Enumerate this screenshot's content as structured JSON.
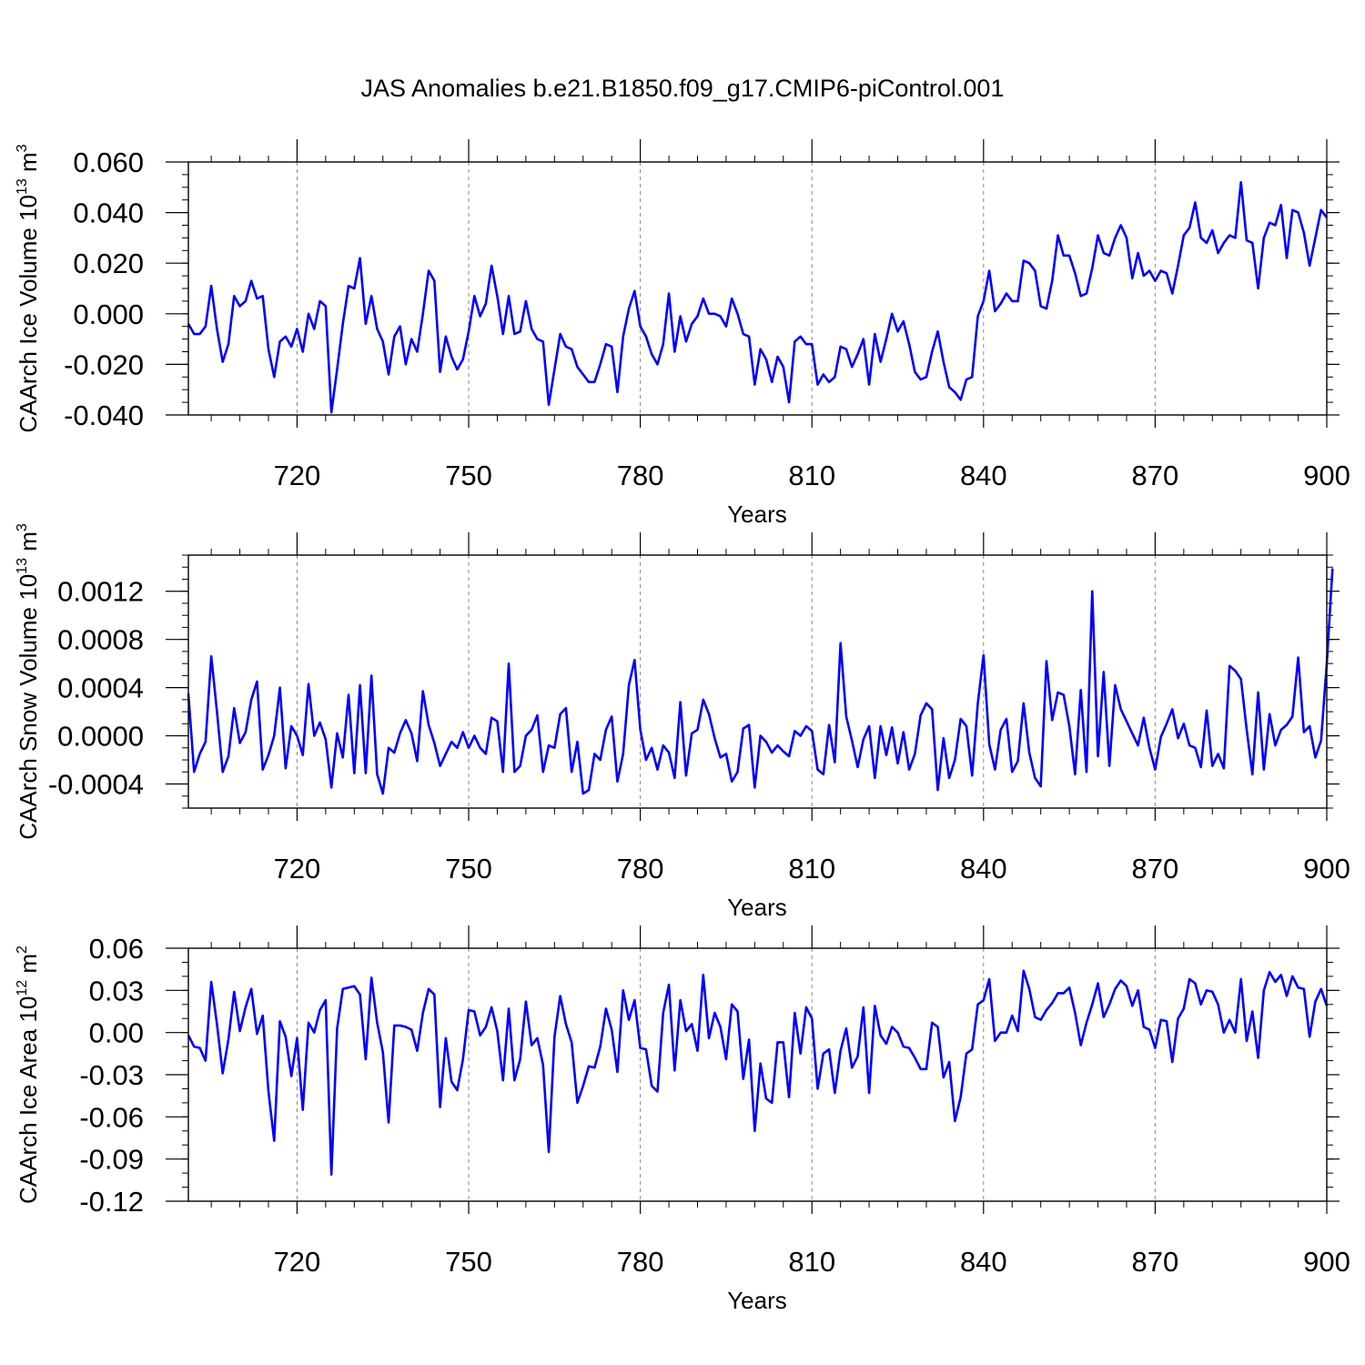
{
  "figure": {
    "title": "JAS Anomalies b.e21.B1850.f09_g17.CMIP6-piControl.001",
    "line_color": "#0000ff",
    "grid_color": "#888888"
  },
  "chart_data": [
    {
      "type": "line",
      "ylabel_main": "CAArch Ice Volume 10",
      "ylabel_exp": "13",
      "ylabel_unit": "m",
      "ylabel_unit_exp": "3",
      "xlabel": "Years",
      "xlim": [
        701,
        900
      ],
      "ylim": [
        -0.04,
        0.06
      ],
      "xticks": [
        720,
        750,
        780,
        810,
        840,
        870,
        900
      ],
      "xtick_labels": [
        "720",
        "750",
        "780",
        "810",
        "840",
        "870",
        "900"
      ],
      "yticks": [
        -0.04,
        -0.02,
        0.0,
        0.02,
        0.04,
        0.06
      ],
      "ytick_labels": [
        "-0.040",
        "-0.020",
        "0.000",
        "0.020",
        "0.040",
        "0.060"
      ],
      "yminor": 0.005,
      "grid_x": [
        720,
        750,
        780,
        810,
        840,
        870
      ],
      "series": [
        {
          "name": "CAArch Ice Volume",
          "x_start": 701,
          "values": [
            -0.004,
            -0.008,
            -0.008,
            -0.005,
            0.011,
            -0.006,
            -0.019,
            -0.012,
            0.007,
            0.003,
            0.005,
            0.013,
            0.006,
            0.007,
            -0.014,
            -0.025,
            -0.011,
            -0.009,
            -0.013,
            -0.006,
            -0.015,
            0.0,
            -0.006,
            0.005,
            0.003,
            -0.039,
            -0.022,
            -0.004,
            0.011,
            0.01,
            0.022,
            -0.004,
            0.007,
            -0.006,
            -0.011,
            -0.024,
            -0.009,
            -0.005,
            -0.02,
            -0.01,
            -0.015,
            0.0,
            0.017,
            0.013,
            -0.023,
            -0.009,
            -0.017,
            -0.022,
            -0.018,
            -0.007,
            0.007,
            -0.001,
            0.004,
            0.019,
            0.007,
            -0.008,
            0.007,
            -0.008,
            -0.007,
            0.005,
            -0.006,
            -0.01,
            -0.011,
            -0.036,
            -0.022,
            -0.008,
            -0.013,
            -0.014,
            -0.021,
            -0.024,
            -0.027,
            -0.027,
            -0.02,
            -0.012,
            -0.013,
            -0.031,
            -0.009,
            0.002,
            0.009,
            -0.005,
            -0.009,
            -0.016,
            -0.02,
            -0.012,
            0.008,
            -0.015,
            -0.001,
            -0.011,
            -0.004,
            -0.001,
            0.006,
            0.0,
            0.0,
            -0.001,
            -0.005,
            0.006,
            0.0,
            -0.008,
            -0.009,
            -0.028,
            -0.014,
            -0.018,
            -0.027,
            -0.017,
            -0.021,
            -0.035,
            -0.011,
            -0.009,
            -0.012,
            -0.012,
            -0.028,
            -0.024,
            -0.027,
            -0.025,
            -0.013,
            -0.014,
            -0.021,
            -0.016,
            -0.01,
            -0.028,
            -0.008,
            -0.019,
            -0.01,
            0.0,
            -0.007,
            -0.003,
            -0.012,
            -0.023,
            -0.026,
            -0.025,
            -0.015,
            -0.007,
            -0.019,
            -0.029,
            -0.031,
            -0.034,
            -0.026,
            -0.025,
            -0.001,
            0.005,
            0.017,
            0.001,
            0.004,
            0.008,
            0.005,
            0.005,
            0.021,
            0.02,
            0.017,
            0.003,
            0.002,
            0.013,
            0.031,
            0.023,
            0.023,
            0.016,
            0.007,
            0.008,
            0.018,
            0.031,
            0.024,
            0.023,
            0.03,
            0.035,
            0.03,
            0.014,
            0.024,
            0.015,
            0.017,
            0.013,
            0.017,
            0.016,
            0.008,
            0.019,
            0.031,
            0.034,
            0.044,
            0.03,
            0.028,
            0.033,
            0.024,
            0.028,
            0.031,
            0.03,
            0.052,
            0.029,
            0.028,
            0.01,
            0.03,
            0.036,
            0.035,
            0.043,
            0.022,
            0.041,
            0.04,
            0.032,
            0.019,
            0.03,
            0.041,
            0.038
          ]
        }
      ]
    },
    {
      "type": "line",
      "ylabel_main": "CAArch Snow Volume 10",
      "ylabel_exp": "13",
      "ylabel_unit": "m",
      "ylabel_unit_exp": "3",
      "xlabel": "Years",
      "xlim": [
        701,
        900
      ],
      "ylim": [
        -0.0006,
        0.0015
      ],
      "xticks": [
        720,
        750,
        780,
        810,
        840,
        870,
        900
      ],
      "xtick_labels": [
        "720",
        "750",
        "780",
        "810",
        "840",
        "870",
        "900"
      ],
      "yticks": [
        -0.0004,
        0.0,
        0.0004,
        0.0008,
        0.0012
      ],
      "ytick_labels": [
        "-0.0004",
        "0.0000",
        "0.0004",
        "0.0008",
        "0.0012"
      ],
      "yminor": 0.0001,
      "grid_x": [
        720,
        750,
        780,
        810,
        840,
        870
      ],
      "series": [
        {
          "name": "CAArch Snow Volume",
          "x_start": 701,
          "values": [
            0.00035,
            -0.0003,
            -0.00015,
            -5e-05,
            0.00066,
            0.0002,
            -0.0003,
            -0.00017,
            0.00023,
            -6e-05,
            3e-05,
            0.0003,
            0.00045,
            -0.00028,
            -0.00016,
            0.0,
            0.0004,
            -0.00027,
            8e-05,
            0.0,
            -0.00016,
            0.00043,
            0.0,
            0.00011,
            -3e-05,
            -0.00043,
            2e-05,
            -0.00018,
            0.00034,
            -0.00031,
            0.00042,
            -0.00031,
            0.0005,
            -0.00032,
            -0.00048,
            -0.0001,
            -0.00014,
            2e-05,
            0.00013,
            2e-05,
            -0.00021,
            0.00037,
            9e-05,
            -6e-05,
            -0.00025,
            -0.00015,
            -5e-05,
            -0.0001,
            3e-05,
            -0.0001,
            0.0,
            -0.0001,
            -0.00015,
            0.00015,
            0.00012,
            -0.0003,
            0.0006,
            -0.0003,
            -0.00025,
            0.0,
            5e-05,
            0.00017,
            -0.0003,
            -8e-05,
            -0.0001,
            0.00018,
            0.00023,
            -0.0003,
            -5e-05,
            -0.00048,
            -0.00045,
            -0.00015,
            -0.0002,
            5e-05,
            0.00016,
            -0.00038,
            -0.00015,
            0.00042,
            0.00063,
            5e-05,
            -0.0002,
            -0.0001,
            -0.00028,
            -8e-05,
            -0.00014,
            -0.00035,
            0.00028,
            -0.00033,
            2e-05,
            5e-05,
            0.0003,
            0.00018,
            -2e-05,
            -0.00018,
            -0.00015,
            -0.00038,
            -0.0003,
            6e-05,
            9e-05,
            -0.00043,
            0.0,
            -5e-05,
            -0.00014,
            -8e-05,
            -0.00013,
            -0.00017,
            4e-05,
            0.0,
            8e-05,
            4e-05,
            -0.00028,
            -0.00032,
            9e-05,
            -0.00022,
            0.00077,
            0.00016,
            -4e-05,
            -0.00026,
            -3e-05,
            8e-05,
            -0.00035,
            8e-05,
            -0.00016,
            7e-05,
            -0.00023,
            3e-05,
            -0.00028,
            -0.00015,
            0.00017,
            0.00027,
            0.00022,
            -0.00045,
            -2e-05,
            -0.00035,
            -0.0002,
            0.00014,
            8e-05,
            -0.00033,
            0.00027,
            0.00067,
            -7e-05,
            -0.00028,
            5e-05,
            0.00014,
            -0.0003,
            -0.00021,
            0.00027,
            -0.00014,
            -0.00035,
            -0.00042,
            0.00062,
            0.00013,
            0.00036,
            0.00034,
            8e-05,
            -0.00032,
            0.00038,
            -0.0003,
            0.0012,
            -0.00017,
            0.00053,
            -0.00025,
            0.00042,
            0.00022,
            0.00012,
            2e-05,
            -8e-05,
            0.00015,
            -0.0001,
            -0.00028,
            -1e-05,
            0.0001,
            0.00022,
            -2e-05,
            0.0001,
            -8e-05,
            -0.0001,
            -0.00026,
            0.00021,
            -0.00025,
            -0.00015,
            -0.00027,
            0.00058,
            0.00054,
            0.00047,
            5e-05,
            -0.00032,
            0.00036,
            -0.00028,
            0.00018,
            -8e-05,
            5e-05,
            9e-05,
            0.00016,
            0.00065,
            3e-05,
            8e-05,
            -0.00018,
            -4e-05,
            0.0006,
            0.00139
          ]
        }
      ]
    },
    {
      "type": "line",
      "ylabel_main": "CAArch Ice Area 10",
      "ylabel_exp": "12",
      "ylabel_unit": "m",
      "ylabel_unit_exp": "2",
      "xlabel": "Years",
      "xlim": [
        701,
        900
      ],
      "ylim": [
        -0.12,
        0.06
      ],
      "xticks": [
        720,
        750,
        780,
        810,
        840,
        870,
        900
      ],
      "xtick_labels": [
        "720",
        "750",
        "780",
        "810",
        "840",
        "870",
        "900"
      ],
      "yticks": [
        -0.12,
        -0.09,
        -0.06,
        -0.03,
        0.0,
        0.03,
        0.06
      ],
      "ytick_labels": [
        "-0.12",
        "-0.09",
        "-0.06",
        "-0.03",
        "0.00",
        "0.03",
        "0.06"
      ],
      "yminor": 0.01,
      "grid_x": [
        720,
        750,
        780,
        810,
        840,
        870
      ],
      "series": [
        {
          "name": "CAArch Ice Area",
          "x_start": 701,
          "values": [
            -0.002,
            -0.01,
            -0.011,
            -0.02,
            0.036,
            0.006,
            -0.029,
            -0.005,
            0.029,
            0.001,
            0.018,
            0.031,
            -0.001,
            0.012,
            -0.042,
            -0.077,
            0.008,
            -0.003,
            -0.031,
            -0.004,
            -0.055,
            0.007,
            0.0,
            0.016,
            0.023,
            -0.101,
            0.003,
            0.031,
            0.032,
            0.033,
            0.027,
            -0.019,
            0.039,
            0.007,
            -0.014,
            -0.064,
            0.005,
            0.005,
            0.004,
            0.002,
            -0.013,
            0.014,
            0.031,
            0.027,
            -0.053,
            -0.004,
            -0.035,
            -0.041,
            -0.019,
            0.016,
            0.015,
            -0.002,
            0.004,
            0.018,
            0.001,
            -0.034,
            0.017,
            -0.034,
            -0.019,
            0.022,
            -0.009,
            -0.004,
            -0.023,
            -0.085,
            -0.003,
            0.026,
            0.006,
            -0.007,
            -0.05,
            -0.038,
            -0.024,
            -0.025,
            -0.01,
            0.017,
            0.002,
            -0.028,
            0.03,
            0.009,
            0.023,
            -0.011,
            -0.012,
            -0.038,
            -0.042,
            0.014,
            0.034,
            -0.027,
            0.023,
            0.001,
            0.006,
            -0.013,
            0.041,
            -0.004,
            0.014,
            0.004,
            -0.019,
            0.02,
            0.015,
            -0.033,
            -0.005,
            -0.07,
            -0.022,
            -0.047,
            -0.05,
            -0.007,
            -0.007,
            -0.046,
            0.014,
            -0.015,
            0.018,
            0.01,
            -0.04,
            -0.015,
            -0.012,
            -0.043,
            -0.013,
            0.003,
            -0.025,
            -0.017,
            0.018,
            -0.043,
            0.019,
            -0.002,
            -0.008,
            0.004,
            0.0,
            -0.01,
            -0.011,
            -0.018,
            -0.026,
            -0.026,
            0.007,
            0.004,
            -0.032,
            -0.021,
            -0.063,
            -0.046,
            -0.015,
            -0.012,
            0.02,
            0.023,
            0.038,
            -0.006,
            0.0,
            0.0,
            0.012,
            0.001,
            0.044,
            0.031,
            0.011,
            0.009,
            0.016,
            0.021,
            0.028,
            0.028,
            0.032,
            0.014,
            -0.009,
            0.007,
            0.02,
            0.035,
            0.011,
            0.02,
            0.031,
            0.037,
            0.033,
            0.019,
            0.03,
            0.004,
            0.002,
            -0.011,
            0.009,
            0.008,
            -0.021,
            0.01,
            0.017,
            0.038,
            0.035,
            0.02,
            0.03,
            0.029,
            0.02,
            0.0,
            0.009,
            0.0,
            0.038,
            -0.006,
            0.015,
            -0.018,
            0.03,
            0.043,
            0.036,
            0.041,
            0.026,
            0.04,
            0.032,
            0.031,
            -0.003,
            0.022,
            0.031,
            0.019
          ]
        }
      ]
    }
  ]
}
